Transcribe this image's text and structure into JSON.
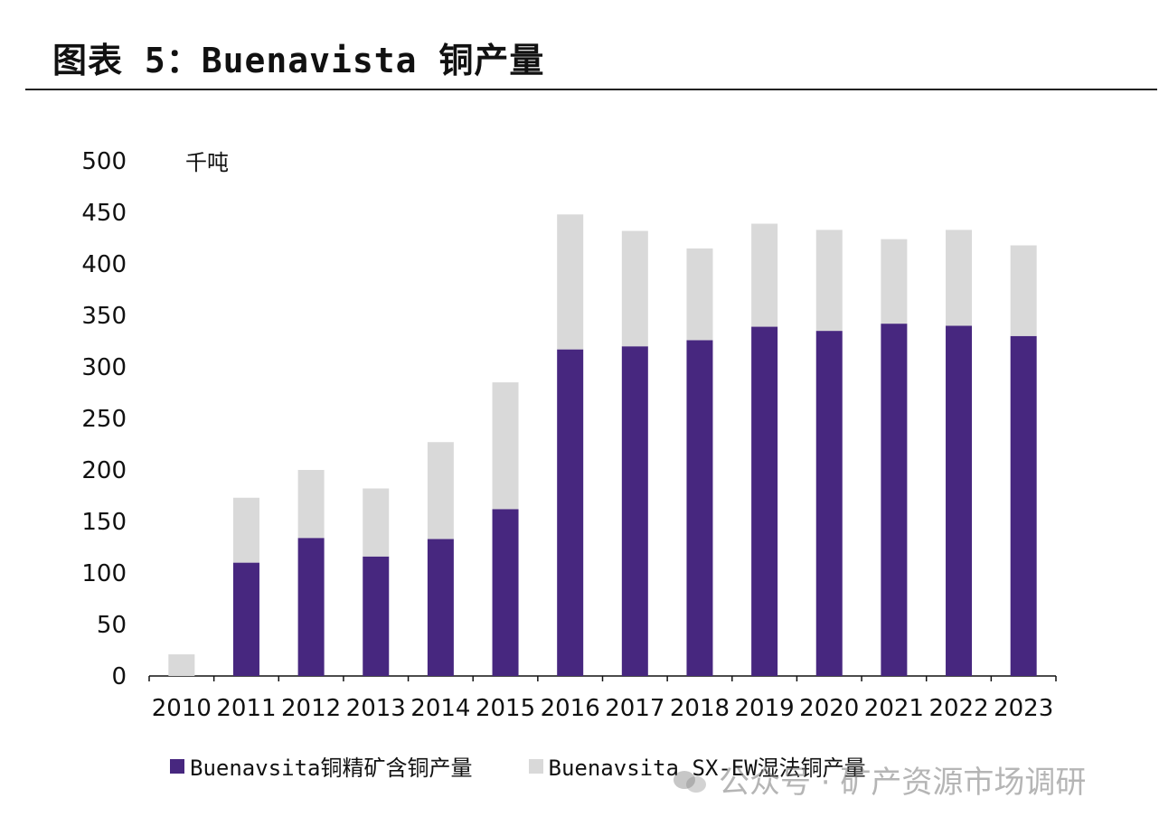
{
  "title": "图表 5：Buenavista 铜产量",
  "watermark": "公众号 · 矿产资源市场调研",
  "colors": {
    "concentrate": "#47277f",
    "sxew": "#d9d9d9",
    "axis": "#111111"
  },
  "chart_data": {
    "type": "bar",
    "stacked": true,
    "unit_label": "千吨",
    "categories": [
      "2010",
      "2011",
      "2012",
      "2013",
      "2014",
      "2015",
      "2016",
      "2017",
      "2018",
      "2019",
      "2020",
      "2021",
      "2022",
      "2023"
    ],
    "series": [
      {
        "name": "Buenavsita铜精矿含铜产量",
        "color": "#47277f",
        "values": [
          0,
          110,
          134,
          116,
          133,
          162,
          317,
          320,
          326,
          339,
          335,
          342,
          340,
          330
        ]
      },
      {
        "name": "Buenavsita SX-EW湿法铜产量",
        "color": "#d9d9d9",
        "values": [
          21,
          63,
          66,
          66,
          94,
          123,
          131,
          112,
          89,
          100,
          98,
          82,
          93,
          88
        ]
      }
    ],
    "ylim": [
      0,
      500
    ],
    "yticks": [
      0,
      50,
      100,
      150,
      200,
      250,
      300,
      350,
      400,
      450,
      500
    ],
    "grid": false,
    "legend_position": "bottom"
  }
}
